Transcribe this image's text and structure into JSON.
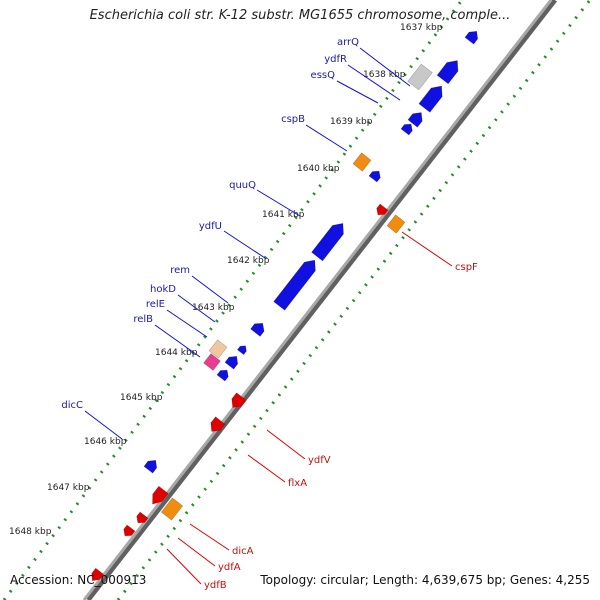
{
  "title": "Escherichia coli str. K-12 substr. MG1655 chromosome, comple...",
  "footer": {
    "accession": "Accession: NC_000913",
    "topology": "Topology: circular; Length: 4,639,675 bp; Genes: 4,255"
  },
  "colors": {
    "backbone": "#a8a8a8",
    "ticks": "#2a8a2a",
    "forward_gene": "#1010e0",
    "reverse_gene": "#e00000",
    "forward_label": "#1a1aa8",
    "reverse_label": "#c01010",
    "rrna_orange": "#f08c10",
    "pseudo_gray": "#c8c8c8",
    "pink": "#e83c8c"
  },
  "kbp_labels": [
    "1637 kbp",
    "1638 kbp",
    "1639 kbp",
    "1640 kbp",
    "1641 kbp",
    "1642 kbp",
    "1643 kbp",
    "1644 kbp",
    "1645 kbp",
    "1646 kbp",
    "1647 kbp",
    "1648 kbp"
  ],
  "forward_genes": [
    "arrQ",
    "ydfR",
    "essQ",
    "cspB",
    "quuQ",
    "ydfU",
    "rem",
    "hokD",
    "relE",
    "relB",
    "dicC"
  ],
  "reverse_genes": [
    "cspF",
    "ydfV",
    "flxA",
    "dicA",
    "ydfA",
    "ydfB"
  ]
}
